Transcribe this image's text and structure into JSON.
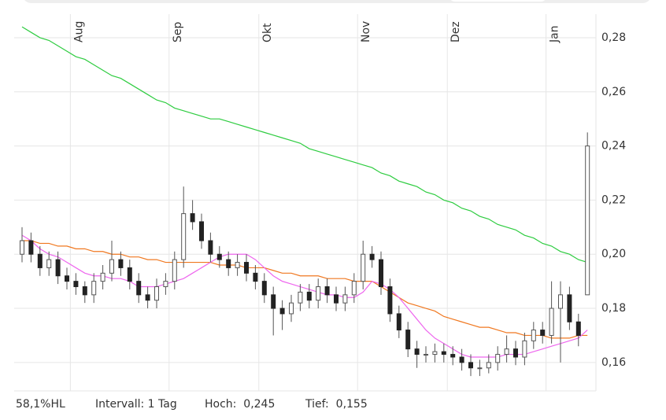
{
  "chart_data": {
    "type": "candlestick",
    "categories": [
      null,
      null,
      null,
      null,
      null,
      null,
      "Aug",
      null,
      null,
      null,
      null,
      null,
      null,
      null,
      null,
      null,
      null,
      "Sep",
      null,
      null,
      null,
      null,
      null,
      null,
      null,
      null,
      null,
      "Okt",
      null,
      null,
      null,
      null,
      null,
      null,
      null,
      null,
      null,
      null,
      "Nov",
      null,
      null,
      null,
      null,
      null,
      null,
      null,
      null,
      null,
      "Dez",
      null,
      null,
      null,
      null,
      null,
      null,
      null,
      null,
      null,
      null,
      "Jan",
      null,
      null,
      null,
      null
    ],
    "open": [
      0.2,
      0.205,
      0.2,
      0.195,
      0.198,
      0.192,
      0.19,
      0.188,
      0.185,
      0.19,
      0.193,
      0.198,
      0.195,
      0.19,
      0.185,
      0.183,
      0.188,
      0.19,
      0.198,
      0.215,
      0.212,
      0.205,
      0.2,
      0.198,
      0.195,
      0.197,
      0.193,
      0.19,
      0.185,
      0.18,
      0.178,
      0.182,
      0.186,
      0.183,
      0.188,
      0.185,
      0.182,
      0.185,
      0.19,
      0.2,
      0.198,
      0.188,
      0.178,
      0.172,
      0.165,
      0.163,
      0.163,
      0.164,
      0.163,
      0.162,
      0.16,
      0.158,
      0.158,
      0.16,
      0.163,
      0.165,
      0.162,
      0.168,
      0.172,
      0.17,
      0.18,
      0.185,
      0.175,
      0.185
    ],
    "high": [
      0.21,
      0.208,
      0.203,
      0.201,
      0.201,
      0.195,
      0.193,
      0.19,
      0.193,
      0.196,
      0.205,
      0.201,
      0.198,
      0.193,
      0.188,
      0.191,
      0.193,
      0.201,
      0.225,
      0.22,
      0.215,
      0.208,
      0.203,
      0.201,
      0.2,
      0.2,
      0.196,
      0.193,
      0.188,
      0.183,
      0.185,
      0.189,
      0.189,
      0.191,
      0.191,
      0.188,
      0.188,
      0.193,
      0.205,
      0.203,
      0.201,
      0.191,
      0.181,
      0.175,
      0.168,
      0.166,
      0.167,
      0.167,
      0.166,
      0.165,
      0.163,
      0.161,
      0.163,
      0.166,
      0.17,
      0.168,
      0.171,
      0.175,
      0.175,
      0.19,
      0.19,
      0.188,
      0.178,
      0.245
    ],
    "low": [
      0.197,
      0.197,
      0.192,
      0.192,
      0.189,
      0.187,
      0.185,
      0.182,
      0.182,
      0.187,
      0.19,
      0.192,
      0.187,
      0.182,
      0.18,
      0.18,
      0.185,
      0.187,
      0.195,
      0.209,
      0.202,
      0.197,
      0.195,
      0.192,
      0.192,
      0.19,
      0.187,
      0.182,
      0.17,
      0.172,
      0.175,
      0.179,
      0.18,
      0.18,
      0.182,
      0.179,
      0.179,
      0.182,
      0.187,
      0.195,
      0.185,
      0.175,
      0.169,
      0.162,
      0.158,
      0.16,
      0.16,
      0.16,
      0.159,
      0.157,
      0.155,
      0.155,
      0.156,
      0.157,
      0.16,
      0.159,
      0.159,
      0.165,
      0.167,
      0.167,
      0.16,
      0.172,
      0.166,
      0.185
    ],
    "close": [
      0.205,
      0.2,
      0.195,
      0.198,
      0.192,
      0.19,
      0.188,
      0.185,
      0.19,
      0.193,
      0.198,
      0.195,
      0.19,
      0.185,
      0.183,
      0.188,
      0.19,
      0.198,
      0.215,
      0.212,
      0.205,
      0.2,
      0.198,
      0.195,
      0.197,
      0.193,
      0.19,
      0.185,
      0.18,
      0.178,
      0.182,
      0.186,
      0.183,
      0.188,
      0.185,
      0.182,
      0.185,
      0.19,
      0.2,
      0.198,
      0.188,
      0.178,
      0.172,
      0.165,
      0.163,
      0.163,
      0.164,
      0.163,
      0.162,
      0.16,
      0.158,
      0.158,
      0.16,
      0.163,
      0.165,
      0.162,
      0.168,
      0.172,
      0.17,
      0.18,
      0.185,
      0.175,
      0.17,
      0.24
    ],
    "up_color": "#ffffff",
    "down_color": "#222222",
    "wick_color": "#555555",
    "series": [
      {
        "color": "#2ecc40",
        "values": [
          0.284,
          0.282,
          0.28,
          0.279,
          0.277,
          0.275,
          0.273,
          0.272,
          0.27,
          0.268,
          0.266,
          0.265,
          0.263,
          0.261,
          0.259,
          0.257,
          0.256,
          0.254,
          0.253,
          0.252,
          0.251,
          0.25,
          0.25,
          0.249,
          0.248,
          0.247,
          0.246,
          0.245,
          0.244,
          0.243,
          0.242,
          0.241,
          0.239,
          0.238,
          0.237,
          0.236,
          0.235,
          0.234,
          0.233,
          0.232,
          0.23,
          0.229,
          0.227,
          0.226,
          0.225,
          0.223,
          0.222,
          0.22,
          0.219,
          0.217,
          0.216,
          0.214,
          0.213,
          0.211,
          0.21,
          0.209,
          0.207,
          0.206,
          0.204,
          0.203,
          0.201,
          0.2,
          0.198,
          0.197
        ]
      },
      {
        "color": "#f07820",
        "values": [
          0.205,
          0.205,
          0.204,
          0.204,
          0.203,
          0.203,
          0.202,
          0.202,
          0.201,
          0.201,
          0.2,
          0.2,
          0.199,
          0.199,
          0.198,
          0.198,
          0.197,
          0.197,
          0.197,
          0.197,
          0.197,
          0.197,
          0.196,
          0.196,
          0.196,
          0.195,
          0.195,
          0.195,
          0.194,
          0.193,
          0.193,
          0.192,
          0.192,
          0.192,
          0.191,
          0.191,
          0.191,
          0.19,
          0.19,
          0.19,
          0.188,
          0.186,
          0.184,
          0.182,
          0.181,
          0.18,
          0.179,
          0.177,
          0.176,
          0.175,
          0.174,
          0.173,
          0.173,
          0.172,
          0.171,
          0.171,
          0.17,
          0.17,
          0.17,
          0.169,
          0.169,
          0.169,
          0.17,
          0.17
        ]
      },
      {
        "color": "#ee66ee",
        "values": [
          0.207,
          0.205,
          0.202,
          0.2,
          0.199,
          0.197,
          0.195,
          0.193,
          0.192,
          0.192,
          0.191,
          0.191,
          0.19,
          0.188,
          0.188,
          0.188,
          0.189,
          0.19,
          0.191,
          0.193,
          0.195,
          0.197,
          0.199,
          0.2,
          0.2,
          0.2,
          0.198,
          0.195,
          0.192,
          0.19,
          0.189,
          0.188,
          0.187,
          0.186,
          0.185,
          0.185,
          0.184,
          0.184,
          0.186,
          0.19,
          0.189,
          0.187,
          0.184,
          0.18,
          0.176,
          0.172,
          0.169,
          0.167,
          0.165,
          0.163,
          0.162,
          0.162,
          0.162,
          0.162,
          0.163,
          0.163,
          0.163,
          0.164,
          0.165,
          0.166,
          0.167,
          0.168,
          0.169,
          0.172
        ]
      }
    ],
    "ylim": [
      0.1495,
      0.2887
    ],
    "yticks": [
      {
        "value": 0.16,
        "label": "0,16"
      },
      {
        "value": 0.18,
        "label": "0,18"
      },
      {
        "value": 0.2,
        "label": "0,20"
      },
      {
        "value": 0.22,
        "label": "0,22"
      },
      {
        "value": 0.24,
        "label": "0,24"
      },
      {
        "value": 0.26,
        "label": "0,26"
      },
      {
        "value": 0.28,
        "label": "0,28"
      }
    ],
    "grid": true
  },
  "footer": [
    "58,1%HL",
    "Intervall: 1 Tag",
    "Hoch:  0,245",
    "Tief:  0,155"
  ]
}
